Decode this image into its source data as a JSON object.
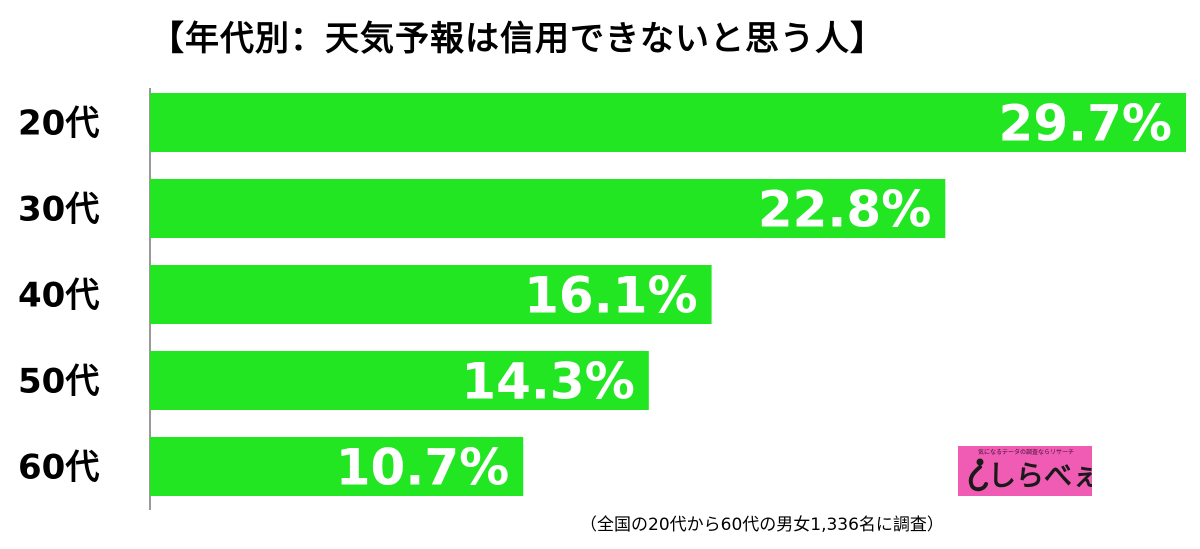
{
  "title": "【年代別：天気予報は信用できないと思う人】",
  "footnote": "（全国の20代から60代の男女1,336名に調査）",
  "logo": {
    "tagline": "気になるデータの調査ならリサーチ",
    "text": "しらべぇ"
  },
  "colors": {
    "bar": "#22e622",
    "bar_label": "#ffffff",
    "axis": "#9a9a9a",
    "logo_bg": "#f05bb4"
  },
  "chart_data": {
    "type": "bar",
    "orientation": "horizontal",
    "title": "【年代別：天気予報は信用できないと思う人】",
    "categories": [
      "20代",
      "30代",
      "40代",
      "50代",
      "60代"
    ],
    "values": [
      29.7,
      22.8,
      16.1,
      14.3,
      10.7
    ],
    "value_labels": [
      "29.7%",
      "22.8%",
      "16.1%",
      "14.3%",
      "10.7%"
    ],
    "unit": "%",
    "xlim": [
      0,
      29.7
    ],
    "grid": false,
    "legend": "none"
  }
}
